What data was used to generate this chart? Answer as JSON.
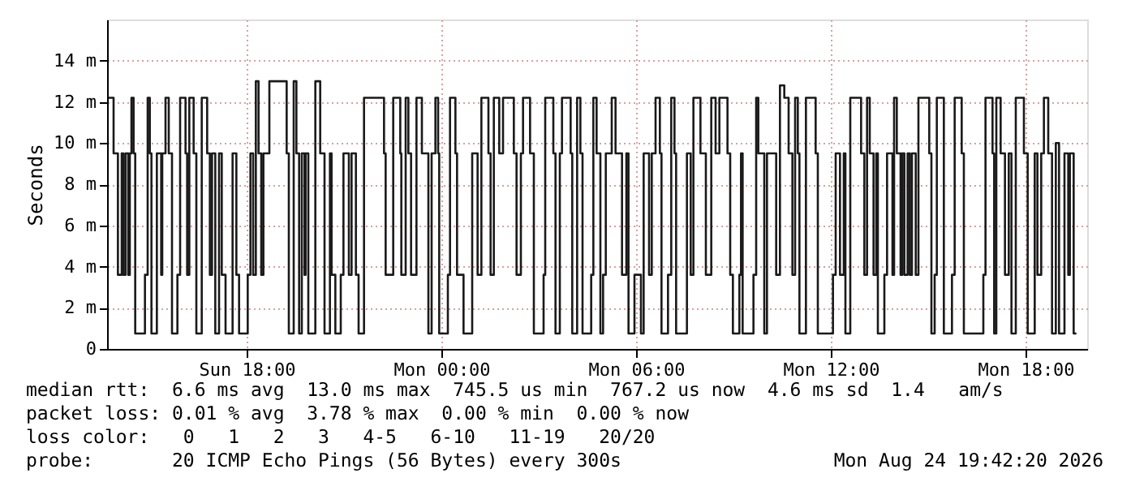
{
  "chart_data": {
    "type": "step",
    "ylabel": "Seconds",
    "grid": true,
    "line_style": "solid",
    "marker": "none",
    "xlim": [
      "2026-08-23T13:42",
      "2026-08-24T19:54"
    ],
    "xticks": [
      {
        "value": "2026-08-23T18:00",
        "label": "Sun 18:00"
      },
      {
        "value": "2026-08-24T00:00",
        "label": "Mon 00:00"
      },
      {
        "value": "2026-08-24T06:00",
        "label": "Mon 06:00"
      },
      {
        "value": "2026-08-24T12:00",
        "label": "Mon 12:00"
      },
      {
        "value": "2026-08-24T18:00",
        "label": "Mon 18:00"
      }
    ],
    "ylim": [
      0,
      16
    ],
    "yticks": [
      0,
      {
        "value": 2,
        "label": "2 m"
      },
      {
        "value": 4,
        "label": "4 m"
      },
      {
        "value": 6,
        "label": "6 m"
      },
      {
        "value": 8,
        "label": "8 m"
      },
      {
        "value": 10,
        "label": "10 m"
      },
      {
        "value": 12,
        "label": "12 m"
      },
      {
        "value": 14,
        "label": "14 m"
      }
    ],
    "annotations": [
      "median rtt:  6.6 ms avg  13.0 ms max  745.5 us min  767.2 us now  4.6 ms sd  1.4   am/s",
      "packet loss: 0.01 % avg  3.78 % max  0.00 % min  0.00 % now",
      "loss color:   0   1   2   3   4-5   6-10   11-19   20/20",
      "probe:       20 ICMP Echo Pings (56 Bytes) every 300s",
      "Mon Aug 24 19:42:20 2026"
    ],
    "series": [
      {
        "color": "#1a1a1a",
        "x": [
          "2026-08-23T13:45",
          "2026-08-23T13:54",
          "2026-08-23T14:02",
          "2026-08-23T14:09",
          "2026-08-23T14:12",
          "2026-08-23T14:16",
          "2026-08-23T14:21",
          "2026-08-23T14:24",
          "2026-08-23T14:27",
          "2026-08-23T14:31",
          "2026-08-23T14:34",
          "2026-08-23T14:52",
          "2026-08-23T14:57",
          "2026-08-23T15:01",
          "2026-08-23T15:04",
          "2026-08-23T15:14",
          "2026-08-23T15:22",
          "2026-08-23T15:24",
          "2026-08-23T15:30",
          "2026-08-23T15:36",
          "2026-08-23T15:42",
          "2026-08-23T15:52",
          "2026-08-23T15:57",
          "2026-08-23T16:07",
          "2026-08-23T16:10",
          "2026-08-23T16:14",
          "2026-08-23T16:22",
          "2026-08-23T16:27",
          "2026-08-23T16:37",
          "2026-08-23T16:47",
          "2026-08-23T16:52",
          "2026-08-23T16:56",
          "2026-08-23T17:02",
          "2026-08-23T17:09",
          "2026-08-23T17:14",
          "2026-08-23T17:21",
          "2026-08-23T17:34",
          "2026-08-23T17:41",
          "2026-08-23T17:46",
          "2026-08-23T18:02",
          "2026-08-23T18:07",
          "2026-08-23T18:12",
          "2026-08-23T18:17",
          "2026-08-23T18:22",
          "2026-08-23T18:27",
          "2026-08-23T18:31",
          "2026-08-23T18:42",
          "2026-08-23T19:14",
          "2026-08-23T19:18",
          "2026-08-23T19:27",
          "2026-08-23T19:32",
          "2026-08-23T19:37",
          "2026-08-23T19:42",
          "2026-08-23T19:47",
          "2026-08-23T19:49",
          "2026-08-23T19:54",
          "2026-08-23T20:07",
          "2026-08-23T20:16",
          "2026-08-23T20:24",
          "2026-08-23T20:34",
          "2026-08-23T20:37",
          "2026-08-23T20:44",
          "2026-08-23T20:54",
          "2026-08-23T20:59",
          "2026-08-23T21:09",
          "2026-08-23T21:14",
          "2026-08-23T21:22",
          "2026-08-23T21:27",
          "2026-08-23T21:37",
          "2026-08-23T22:14",
          "2026-08-23T22:17",
          "2026-08-23T22:31",
          "2026-08-23T22:44",
          "2026-08-23T22:46",
          "2026-08-23T22:54",
          "2026-08-23T22:59",
          "2026-08-23T23:04",
          "2026-08-23T23:14",
          "2026-08-23T23:24",
          "2026-08-23T23:36",
          "2026-08-23T23:42",
          "2026-08-23T23:49",
          "2026-08-23T23:54",
          "2026-08-23T23:56",
          "2026-08-24T00:12",
          "2026-08-24T00:16",
          "2026-08-24T00:26",
          "2026-08-24T00:29",
          "2026-08-24T00:41",
          "2026-08-24T00:57",
          "2026-08-24T01:07",
          "2026-08-24T01:14",
          "2026-08-24T01:27",
          "2026-08-24T01:31",
          "2026-08-24T01:37",
          "2026-08-24T01:47",
          "2026-08-24T01:54",
          "2026-08-24T02:14",
          "2026-08-24T02:19",
          "2026-08-24T02:27",
          "2026-08-24T02:31",
          "2026-08-24T02:44",
          "2026-08-24T02:51",
          "2026-08-24T03:09",
          "2026-08-24T03:12",
          "2026-08-24T03:27",
          "2026-08-24T03:31",
          "2026-08-24T03:39",
          "2026-08-24T03:43",
          "2026-08-24T03:59",
          "2026-08-24T04:02",
          "2026-08-24T04:11",
          "2026-08-24T04:17",
          "2026-08-24T04:21",
          "2026-08-24T04:37",
          "2026-08-24T04:41",
          "2026-08-24T04:47",
          "2026-08-24T04:54",
          "2026-08-24T04:59",
          "2026-08-24T05:04",
          "2026-08-24T05:15",
          "2026-08-24T05:22",
          "2026-08-24T05:34",
          "2026-08-24T05:42",
          "2026-08-24T05:46",
          "2026-08-24T05:57",
          "2026-08-24T06:09",
          "2026-08-24T06:14",
          "2026-08-24T06:24",
          "2026-08-24T06:29",
          "2026-08-24T06:36",
          "2026-08-24T06:44",
          "2026-08-24T06:47",
          "2026-08-24T06:59",
          "2026-08-24T07:05",
          "2026-08-24T07:11",
          "2026-08-24T07:14",
          "2026-08-24T07:34",
          "2026-08-24T07:41",
          "2026-08-24T07:46",
          "2026-08-24T07:59",
          "2026-08-24T08:09",
          "2026-08-24T08:19",
          "2026-08-24T08:27",
          "2026-08-24T08:34",
          "2026-08-24T08:49",
          "2026-08-24T08:54",
          "2026-08-24T08:59",
          "2026-08-24T09:11",
          "2026-08-24T09:14",
          "2026-08-24T09:17",
          "2026-08-24T09:37",
          "2026-08-24T09:42",
          "2026-08-24T09:46",
          "2026-08-24T09:57",
          "2026-08-24T10:02",
          "2026-08-24T10:19",
          "2026-08-24T10:26",
          "2026-08-24T10:34",
          "2026-08-24T10:42",
          "2026-08-24T10:49",
          "2026-08-24T10:54",
          "2026-08-24T10:59",
          "2026-08-24T11:02",
          "2026-08-24T11:14",
          "2026-08-24T11:32",
          "2026-08-24T11:36",
          "2026-08-24T12:04",
          "2026-08-24T12:09",
          "2026-08-24T12:17",
          "2026-08-24T12:24",
          "2026-08-24T12:27",
          "2026-08-24T12:36",
          "2026-08-24T12:56",
          "2026-08-24T13:02",
          "2026-08-24T13:07",
          "2026-08-24T13:12",
          "2026-08-24T13:19",
          "2026-08-24T13:24",
          "2026-08-24T13:27",
          "2026-08-24T13:39",
          "2026-08-24T13:44",
          "2026-08-24T13:54",
          "2026-08-24T13:57",
          "2026-08-24T14:02",
          "2026-08-24T14:09",
          "2026-08-24T14:12",
          "2026-08-24T14:16",
          "2026-08-24T14:22",
          "2026-08-24T14:26",
          "2026-08-24T14:30",
          "2026-08-24T14:37",
          "2026-08-24T14:42",
          "2026-08-24T15:02",
          "2026-08-24T15:06",
          "2026-08-24T15:12",
          "2026-08-24T15:16",
          "2026-08-24T15:29",
          "2026-08-24T15:44",
          "2026-08-24T15:49",
          "2026-08-24T16:02",
          "2026-08-24T16:06",
          "2026-08-24T16:42",
          "2026-08-24T16:46",
          "2026-08-24T16:59",
          "2026-08-24T17:02",
          "2026-08-24T17:06",
          "2026-08-24T17:14",
          "2026-08-24T17:22",
          "2026-08-24T17:29",
          "2026-08-24T17:34",
          "2026-08-24T17:42",
          "2026-08-24T17:57",
          "2026-08-24T18:04",
          "2026-08-24T18:17",
          "2026-08-24T18:22",
          "2026-08-24T18:29",
          "2026-08-24T18:34",
          "2026-08-24T18:42",
          "2026-08-24T18:49",
          "2026-08-24T18:56",
          "2026-08-24T19:02",
          "2026-08-24T19:12",
          "2026-08-24T19:19",
          "2026-08-24T19:22",
          "2026-08-24T19:29",
          "2026-08-24T19:34"
        ],
        "values": [
          12.2,
          9.5,
          3.6,
          9.5,
          3.6,
          9.5,
          3.6,
          9.5,
          12.2,
          9.5,
          0.75,
          3.6,
          12.2,
          9.5,
          0.75,
          9.5,
          3.6,
          9.5,
          12.2,
          9.5,
          0.75,
          3.6,
          12.2,
          9.5,
          3.6,
          12.2,
          9.5,
          0.75,
          12.2,
          9.5,
          3.6,
          9.5,
          0.75,
          9.5,
          3.6,
          0.75,
          9.5,
          3.6,
          0.75,
          3.6,
          9.5,
          3.6,
          13,
          9.5,
          3.6,
          9.5,
          13,
          9.5,
          0.75,
          13,
          9.5,
          0.75,
          9.5,
          3.6,
          9.5,
          0.75,
          13,
          9.5,
          0.75,
          9.5,
          3.6,
          0.75,
          3.6,
          9.5,
          3.6,
          9.5,
          3.6,
          0.75,
          12.2,
          9.5,
          3.6,
          12.2,
          9.5,
          3.6,
          12.2,
          9.5,
          3.6,
          12.2,
          9.5,
          0.75,
          9.5,
          12.2,
          9.5,
          0.75,
          3.6,
          12.2,
          9.5,
          3.6,
          0.75,
          9.5,
          3.6,
          12.2,
          9.5,
          3.6,
          12.2,
          9.5,
          12.2,
          9.5,
          3.6,
          9.5,
          12.2,
          9.5,
          0.75,
          3.6,
          12.2,
          9.5,
          0.75,
          9.5,
          12.2,
          9.5,
          0.75,
          12.2,
          9.5,
          0.75,
          3.6,
          12.2,
          9.5,
          0.75,
          3.6,
          9.5,
          12.2,
          9.5,
          3.6,
          9.5,
          0.75,
          3.6,
          0.75,
          9.5,
          3.6,
          9.5,
          12.2,
          9.5,
          0.75,
          3.6,
          12.2,
          9.5,
          0.75,
          9.5,
          3.6,
          12.2,
          9.5,
          3.6,
          12.2,
          9.5,
          12.2,
          9.5,
          3.6,
          0.75,
          3.6,
          9.5,
          0.75,
          3.6,
          12.2,
          9.5,
          0.75,
          9.5,
          3.6,
          12.8,
          12.2,
          9.5,
          3.6,
          12.2,
          9.5,
          0.75,
          12.2,
          9.5,
          0.75,
          3.6,
          9.5,
          3.6,
          9.5,
          0.75,
          12.2,
          9.5,
          3.6,
          12.2,
          9.5,
          3.6,
          9.5,
          0.75,
          3.6,
          9.5,
          3.6,
          12.2,
          9.5,
          3.6,
          9.5,
          3.6,
          9.5,
          3.6,
          9.5,
          3.6,
          12.2,
          9.5,
          0.75,
          3.6,
          12.2,
          0.75,
          3.6,
          12.2,
          9.5,
          0.75,
          3.6,
          12.2,
          9.5,
          0.75,
          12.2,
          9.5,
          3.6,
          9.5,
          0.75,
          12.2,
          9.5,
          0.75,
          9.5,
          3.6,
          9.5,
          12.2,
          9.5,
          0.75,
          10,
          0.75,
          9.5,
          3.6,
          9.5,
          0.75,
          0.75
        ]
      }
    ]
  }
}
